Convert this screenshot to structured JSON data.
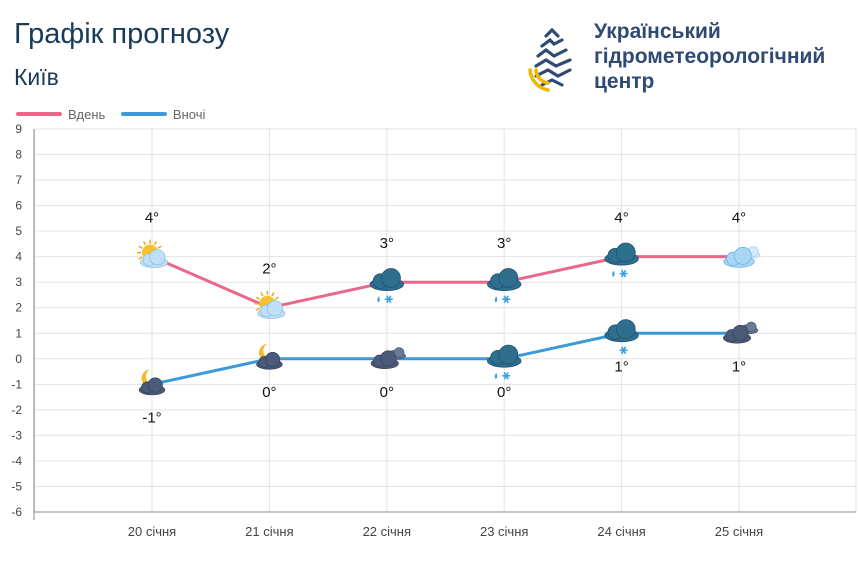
{
  "header": {
    "title": "Графік прогнозу",
    "city": "Київ",
    "org_line1": "Український",
    "org_line2": "гідрометеорологічний",
    "org_line3": "центр"
  },
  "colors": {
    "day": "#e9688a",
    "night": "#3b9ad9",
    "grid": "#e3e3e3",
    "axis": "#8a8a8a"
  },
  "chart_data": {
    "type": "line",
    "categories": [
      "20 січня",
      "21 січня",
      "22 січня",
      "23 січня",
      "24 січня",
      "25 січня"
    ],
    "ylim": [
      -6,
      9
    ],
    "yticks": [
      9,
      8,
      7,
      6,
      5,
      4,
      3,
      2,
      1,
      0,
      -1,
      -2,
      -3,
      -4,
      -5,
      -6
    ],
    "grid": true,
    "legend_position": "top-left",
    "series": [
      {
        "name": "Вдень",
        "color": "#e9688a",
        "values": [
          4,
          2,
          3,
          3,
          4,
          4
        ],
        "labels": [
          "4°",
          "2°",
          "3°",
          "3°",
          "4°",
          "4°"
        ],
        "icons": [
          "sun-cloud-icon",
          "sun-cloud-icon",
          "rain-snow-cloud-icon",
          "rain-snow-cloud-icon",
          "rain-snow-cloud-icon",
          "cloudy-icon"
        ]
      },
      {
        "name": "Вночі",
        "color": "#3b9ad9",
        "values": [
          -1,
          0,
          0,
          0,
          1,
          1
        ],
        "labels": [
          "-1°",
          "0°",
          "0°",
          "0°",
          "1°",
          "1°"
        ],
        "icons": [
          "moon-cloud-icon",
          "moon-cloud-icon",
          "overcast-icon",
          "rain-snow-cloud-icon",
          "snow-cloud-icon",
          "overcast-icon"
        ]
      }
    ]
  }
}
